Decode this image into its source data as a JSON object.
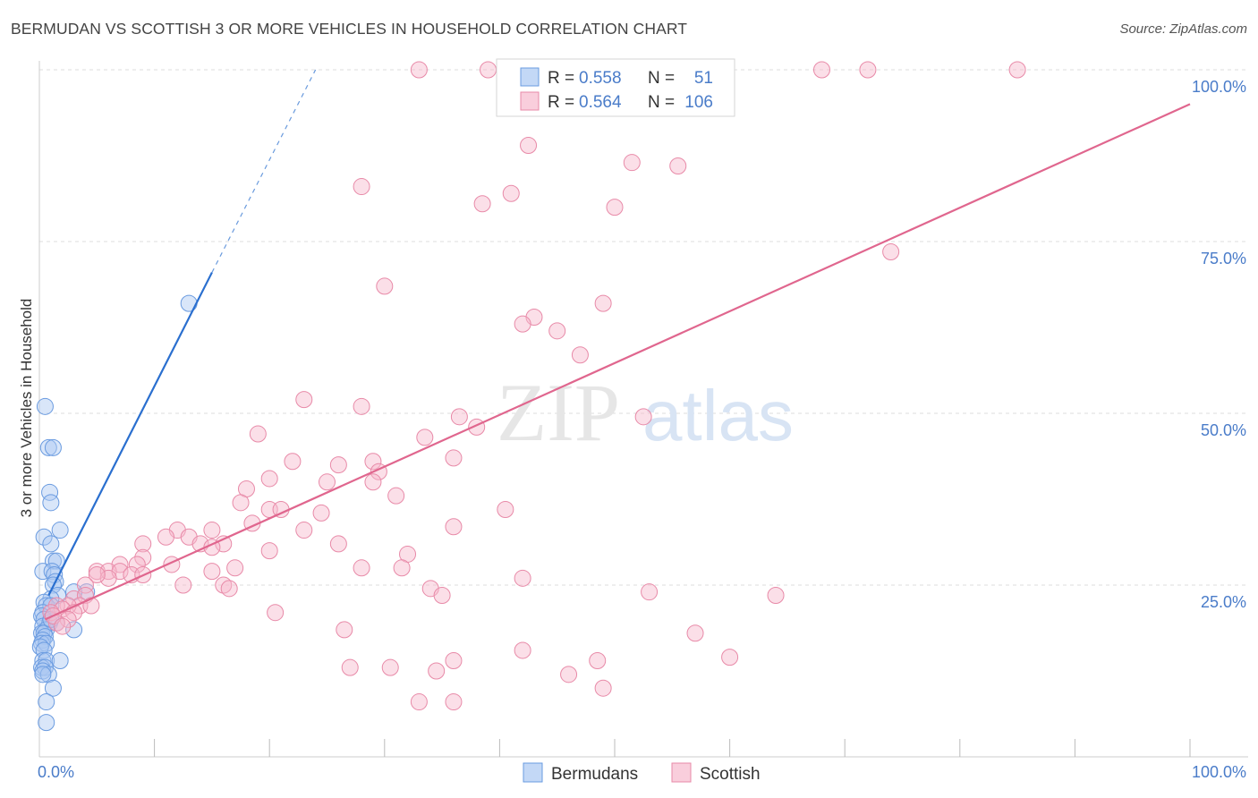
{
  "title": "BERMUDAN VS SCOTTISH 3 OR MORE VEHICLES IN HOUSEHOLD CORRELATION CHART",
  "source": "Source: ZipAtlas.com",
  "watermark": {
    "zip": "ZIP",
    "atlas": "atlas"
  },
  "chart_data": {
    "type": "scatter",
    "title": "BERMUDAN VS SCOTTISH 3 OR MORE VEHICLES IN HOUSEHOLD CORRELATION CHART",
    "xlabel": "",
    "ylabel": "3 or more Vehicles in Household",
    "xlim": [
      0,
      100
    ],
    "ylim": [
      0,
      100
    ],
    "x_tick_labels": [
      "0.0%",
      "100.0%"
    ],
    "y_tick_labels": [
      "25.0%",
      "50.0%",
      "75.0%",
      "100.0%"
    ],
    "y_ticks": [
      25,
      50,
      75,
      100
    ],
    "grid": true,
    "legend_position": "top-center",
    "colors": {
      "bermudans_fill": "#aac8f2",
      "bermudans_stroke": "#6a9be0",
      "bermudans_line": "#2a6fcf",
      "scottish_fill": "#f7b9cd",
      "scottish_stroke": "#e88aa8",
      "scottish_line": "#e0668e",
      "axis_label": "#4a7cc9"
    },
    "legend": [
      {
        "name": "Bermudans",
        "r_label": "R =",
        "r": "0.558",
        "n_label": "N =",
        "n": "51"
      },
      {
        "name": "Scottish",
        "r_label": "R =",
        "r": "0.564",
        "n_label": "N =",
        "n": "106"
      }
    ],
    "series": [
      {
        "name": "Bermudans",
        "trend": {
          "x0": 0.8,
          "y0": 23.5,
          "x1": 15.0,
          "y1": 70.5,
          "x_dash_end": 24.0,
          "y_dash_end": 100.0
        },
        "points": [
          [
            0.5,
            51
          ],
          [
            0.8,
            45
          ],
          [
            1.2,
            45
          ],
          [
            0.9,
            38.5
          ],
          [
            1.0,
            37
          ],
          [
            1.8,
            33
          ],
          [
            0.4,
            32
          ],
          [
            1.0,
            31
          ],
          [
            1.2,
            28.5
          ],
          [
            1.5,
            28.5
          ],
          [
            0.3,
            27
          ],
          [
            1.1,
            27
          ],
          [
            1.3,
            26.5
          ],
          [
            1.4,
            25.5
          ],
          [
            1.2,
            25
          ],
          [
            4.1,
            24
          ],
          [
            3.0,
            24
          ],
          [
            1.6,
            23.5
          ],
          [
            1.0,
            23
          ],
          [
            0.4,
            22.5
          ],
          [
            0.6,
            22
          ],
          [
            1.0,
            22
          ],
          [
            0.3,
            21
          ],
          [
            0.2,
            20.5
          ],
          [
            0.4,
            20
          ],
          [
            0.9,
            19.5
          ],
          [
            1.5,
            19.5
          ],
          [
            0.3,
            19
          ],
          [
            0.6,
            18.5
          ],
          [
            3.0,
            18.5
          ],
          [
            0.2,
            18
          ],
          [
            0.4,
            18
          ],
          [
            0.5,
            17.5
          ],
          [
            0.3,
            17
          ],
          [
            0.2,
            16.5
          ],
          [
            0.6,
            16.5
          ],
          [
            0.1,
            16
          ],
          [
            0.4,
            15.5
          ],
          [
            0.3,
            14
          ],
          [
            0.6,
            14
          ],
          [
            1.8,
            14
          ],
          [
            0.2,
            13
          ],
          [
            0.5,
            13
          ],
          [
            0.3,
            12.5
          ],
          [
            0.8,
            12
          ],
          [
            0.3,
            12
          ],
          [
            1.2,
            10
          ],
          [
            0.6,
            8
          ],
          [
            0.6,
            5
          ],
          [
            13.0,
            66
          ],
          [
            1.0,
            20
          ]
        ]
      },
      {
        "name": "Scottish",
        "trend": {
          "x0": 0.5,
          "y0": 20,
          "x1": 100,
          "y1": 95
        },
        "points": [
          [
            33,
            100
          ],
          [
            39,
            100
          ],
          [
            47.5,
            100
          ],
          [
            59,
            100
          ],
          [
            68,
            100
          ],
          [
            72,
            100
          ],
          [
            85,
            100
          ],
          [
            42.5,
            89
          ],
          [
            51.5,
            86.5
          ],
          [
            55.5,
            86
          ],
          [
            28,
            83
          ],
          [
            41,
            82
          ],
          [
            38.5,
            80.5
          ],
          [
            50,
            80
          ],
          [
            74,
            73.5
          ],
          [
            30,
            68.5
          ],
          [
            49,
            66
          ],
          [
            43,
            64
          ],
          [
            42,
            63
          ],
          [
            45,
            62
          ],
          [
            47,
            58.5
          ],
          [
            23,
            52
          ],
          [
            28,
            51
          ],
          [
            36.5,
            49.5
          ],
          [
            52.5,
            49.5
          ],
          [
            38,
            48
          ],
          [
            19,
            47
          ],
          [
            33.5,
            46.5
          ],
          [
            36,
            43.5
          ],
          [
            22,
            43
          ],
          [
            26,
            42.5
          ],
          [
            29,
            43
          ],
          [
            29.5,
            41.5
          ],
          [
            20,
            40.5
          ],
          [
            25,
            40
          ],
          [
            29,
            40
          ],
          [
            18,
            39
          ],
          [
            31,
            38
          ],
          [
            17.5,
            37
          ],
          [
            20,
            36
          ],
          [
            21,
            36
          ],
          [
            24.5,
            35.5
          ],
          [
            40.5,
            36
          ],
          [
            18.5,
            34
          ],
          [
            36,
            33.5
          ],
          [
            15,
            33
          ],
          [
            12,
            33
          ],
          [
            23,
            33
          ],
          [
            13,
            32
          ],
          [
            14,
            31
          ],
          [
            16,
            31
          ],
          [
            11,
            32
          ],
          [
            26,
            31
          ],
          [
            9,
            31
          ],
          [
            20,
            30
          ],
          [
            15,
            30.5
          ],
          [
            32,
            29.5
          ],
          [
            9,
            29
          ],
          [
            11.5,
            28
          ],
          [
            7,
            28
          ],
          [
            8.5,
            28
          ],
          [
            28,
            27.5
          ],
          [
            31.5,
            27.5
          ],
          [
            15,
            27
          ],
          [
            17,
            27.5
          ],
          [
            5,
            27
          ],
          [
            6,
            27
          ],
          [
            7,
            27
          ],
          [
            8,
            26.5
          ],
          [
            9,
            26.5
          ],
          [
            42,
            26
          ],
          [
            6,
            26
          ],
          [
            5,
            26.5
          ],
          [
            12.5,
            25
          ],
          [
            16,
            25
          ],
          [
            16.5,
            24.5
          ],
          [
            34,
            24.5
          ],
          [
            53,
            24
          ],
          [
            4,
            25
          ],
          [
            3,
            23
          ],
          [
            4,
            23.5
          ],
          [
            64,
            23.5
          ],
          [
            35,
            23.5
          ],
          [
            3.5,
            22
          ],
          [
            2.5,
            22
          ],
          [
            4.5,
            22
          ],
          [
            1.5,
            22
          ],
          [
            2,
            21.5
          ],
          [
            1,
            21
          ],
          [
            3,
            21
          ],
          [
            2.5,
            20
          ],
          [
            1.5,
            19.5
          ],
          [
            20.5,
            21
          ],
          [
            1.2,
            20.5
          ],
          [
            2,
            19
          ],
          [
            26.5,
            18.5
          ],
          [
            57,
            18
          ],
          [
            42,
            15.5
          ],
          [
            60,
            14.5
          ],
          [
            48.5,
            14
          ],
          [
            36,
            14
          ],
          [
            30.5,
            13
          ],
          [
            27,
            13
          ],
          [
            34.5,
            12.5
          ],
          [
            46,
            12
          ],
          [
            49,
            10
          ],
          [
            33,
            8
          ],
          [
            36,
            8
          ]
        ]
      }
    ]
  }
}
